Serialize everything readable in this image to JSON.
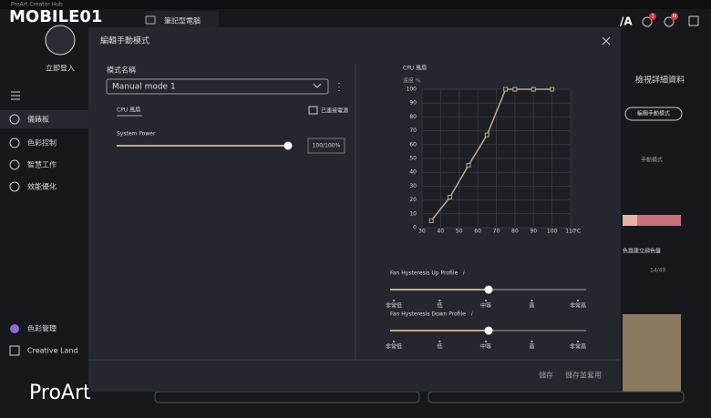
{
  "window": {
    "title": "ProArt Creator Hub",
    "watermark": "MOBILE01",
    "tab": "筆記型電腦",
    "badges": [
      "1",
      "N"
    ]
  },
  "sidebar": {
    "login": "立即登入",
    "nav": [
      "儀錶板",
      "色彩控制",
      "智慧工作",
      "效能優化"
    ],
    "bottom": [
      "色彩管理",
      "Creative Land"
    ],
    "brand": "ProArt"
  },
  "background": {
    "details": "檢視詳細資料",
    "edit_button": "編輯手動模式",
    "mode_label": "手動模式",
    "palette_text": "色器建立調色盤",
    "counter": "14/40"
  },
  "modal": {
    "title": "編輯手動模式",
    "mode_name_label": "模式名稱",
    "mode_name": "Manual mode 1",
    "fan_tab": "CPU 風扇",
    "power_status": "已連接電源",
    "system_power_label": "System Power",
    "system_power_value": "100/100%",
    "hysteresis": [
      {
        "title": "Fan Hysteresis Up Profile",
        "info": "i",
        "levels": [
          "非常低",
          "低",
          "中等",
          "高",
          "非常高"
        ]
      },
      {
        "title": "Fan Hysteresis Down Profile",
        "info": "i",
        "levels": [
          "非常低",
          "低",
          "中等",
          "高",
          "非常高"
        ]
      }
    ],
    "buttons": [
      "儲存",
      "儲存並套用"
    ]
  },
  "chart_data": {
    "type": "line",
    "title": "CPU 風扇",
    "y_label": "速度 %",
    "x_unit": "°C",
    "x": [
      35,
      45,
      55,
      65,
      75,
      80,
      90,
      100
    ],
    "series": [
      {
        "name": "CPU 風扇",
        "color": "#c8a882",
        "values": [
          5,
          22,
          45,
          67,
          100,
          100,
          100,
          100
        ]
      }
    ],
    "xlim": [
      30,
      110
    ],
    "ylim": [
      0,
      100
    ],
    "xticks": [
      30,
      40,
      50,
      60,
      70,
      80,
      90,
      100,
      110
    ],
    "yticks": [
      0,
      10,
      20,
      30,
      40,
      50,
      60,
      70,
      80,
      90,
      100
    ],
    "grid": true
  }
}
